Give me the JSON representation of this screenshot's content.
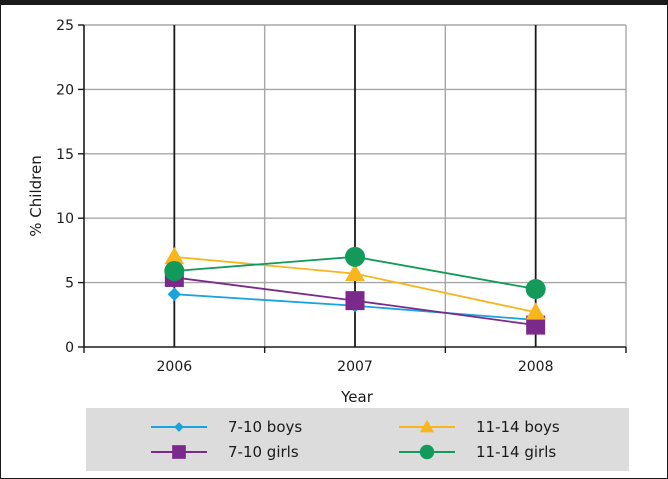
{
  "chart_data": {
    "type": "line",
    "title": "",
    "xlabel": "Year",
    "ylabel": "% Children",
    "categories": [
      "2006",
      "2007",
      "2008"
    ],
    "ylim": [
      0,
      25
    ],
    "yticks": [
      "0",
      "5",
      "10",
      "15",
      "20",
      "25"
    ],
    "grid": true,
    "legend_position": "bottom",
    "series": [
      {
        "name": "7-10 boys",
        "values": [
          4.1,
          3.2,
          2.1
        ],
        "color": "#1aa3dc",
        "marker": "diamond"
      },
      {
        "name": "7-10 girls",
        "values": [
          5.4,
          3.6,
          1.7
        ],
        "color": "#7b2a8b",
        "marker": "square"
      },
      {
        "name": "11-14 boys",
        "values": [
          7.0,
          5.7,
          2.7
        ],
        "color": "#f7b51e",
        "marker": "triangle"
      },
      {
        "name": "11-14 girls",
        "values": [
          5.9,
          7.0,
          4.5
        ],
        "color": "#139a5a",
        "marker": "circle"
      }
    ],
    "legend_order": [
      0,
      2,
      1,
      3
    ]
  },
  "colors": {
    "grid": "#a7a7a7",
    "category_line": "#1a1a1a",
    "legend_background": "#dcdcdc"
  }
}
